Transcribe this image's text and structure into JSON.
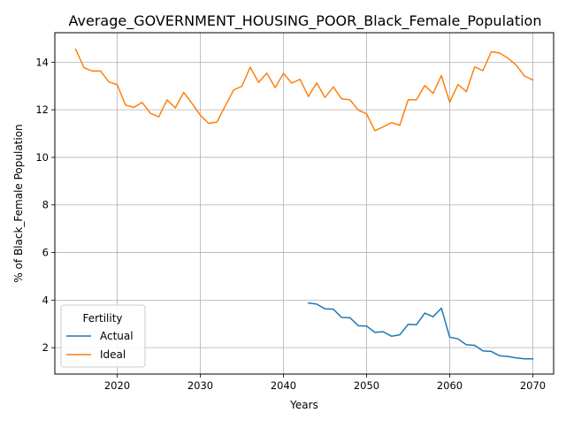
{
  "chart_data": {
    "type": "line",
    "title": "Average_GOVERNMENT_HOUSING_POOR_Black_Female_Population",
    "xlabel": "Years",
    "ylabel": "% of Black_Female Population",
    "xlim": [
      2012.5,
      2072.5
    ],
    "ylim": [
      0.89,
      15.24
    ],
    "x_ticks": [
      2020,
      2030,
      2040,
      2050,
      2060,
      2070
    ],
    "y_ticks": [
      2,
      4,
      6,
      8,
      10,
      12,
      14
    ],
    "grid": true,
    "legend": {
      "title": "Fertility",
      "placement": "lower-left"
    },
    "series": [
      {
        "name": "Actual",
        "color": "#1f77b4",
        "x": [
          2043,
          2044,
          2045,
          2046,
          2047,
          2048,
          2049,
          2050,
          2051,
          2052,
          2053,
          2054,
          2055,
          2056,
          2057,
          2058,
          2059,
          2060,
          2061,
          2062,
          2063,
          2064,
          2065,
          2066,
          2067,
          2068,
          2069,
          2070
        ],
        "values": [
          3.88,
          3.83,
          3.63,
          3.62,
          3.27,
          3.26,
          2.92,
          2.91,
          2.64,
          2.67,
          2.48,
          2.54,
          2.98,
          2.96,
          3.45,
          3.3,
          3.66,
          2.44,
          2.37,
          2.12,
          2.1,
          1.86,
          1.84,
          1.66,
          1.63,
          1.57,
          1.53,
          1.53
        ]
      },
      {
        "name": "Ideal",
        "color": "#ff7f0e",
        "x": [
          2015,
          2016,
          2017,
          2018,
          2019,
          2020,
          2021,
          2022,
          2023,
          2024,
          2025,
          2026,
          2027,
          2028,
          2029,
          2030,
          2031,
          2032,
          2033,
          2034,
          2035,
          2036,
          2037,
          2038,
          2039,
          2040,
          2041,
          2042,
          2043,
          2044,
          2045,
          2046,
          2047,
          2048,
          2049,
          2050,
          2051,
          2052,
          2053,
          2054,
          2055,
          2056,
          2057,
          2058,
          2059,
          2060,
          2061,
          2062,
          2063,
          2064,
          2065,
          2066,
          2067,
          2068,
          2069,
          2070
        ],
        "values": [
          14.55,
          13.77,
          13.63,
          13.63,
          13.17,
          13.06,
          12.2,
          12.1,
          12.31,
          11.85,
          11.7,
          12.42,
          12.08,
          12.73,
          12.27,
          11.77,
          11.43,
          11.48,
          12.16,
          12.83,
          12.99,
          13.79,
          13.15,
          13.54,
          12.93,
          13.53,
          13.12,
          13.28,
          12.56,
          13.13,
          12.52,
          12.96,
          12.46,
          12.42,
          11.99,
          11.83,
          11.12,
          11.28,
          11.46,
          11.35,
          12.42,
          12.42,
          13.02,
          12.69,
          13.44,
          12.32,
          13.06,
          12.76,
          13.8,
          13.65,
          14.44,
          14.39,
          14.17,
          13.88,
          13.42,
          13.25
        ]
      }
    ]
  }
}
